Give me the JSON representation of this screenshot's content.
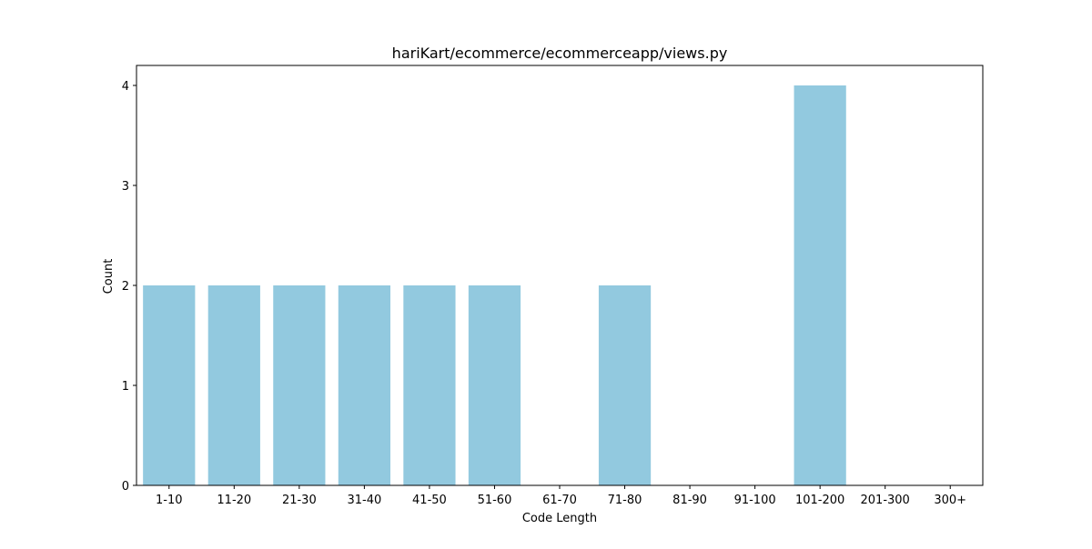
{
  "chart_data": {
    "type": "bar",
    "title": "hariKart/ecommerce/ecommerceapp/views.py",
    "xlabel": "Code Length",
    "ylabel": "Count",
    "categories": [
      "1-10",
      "11-20",
      "21-30",
      "31-40",
      "41-50",
      "51-60",
      "61-70",
      "71-80",
      "81-90",
      "91-100",
      "101-200",
      "201-300",
      "300+"
    ],
    "values": [
      2,
      2,
      2,
      2,
      2,
      2,
      0,
      2,
      0,
      0,
      4,
      0,
      0
    ],
    "ylim": [
      0,
      4.2
    ],
    "yticks": [
      "0",
      "1",
      "2",
      "3",
      "4"
    ],
    "grid": false,
    "bar_color": "#92c9df"
  }
}
